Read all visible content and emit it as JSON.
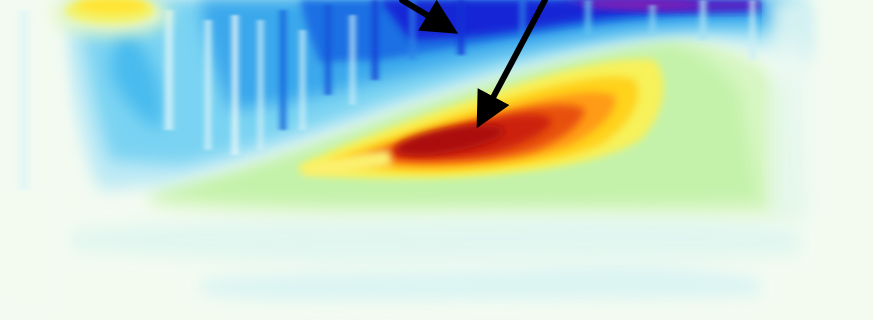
{
  "figure": {
    "kind": "heatmap",
    "annotations": [
      {
        "name": "arrow-to-blue-region",
        "points_to": "blue-cold-region"
      },
      {
        "name": "arrow-to-red-peak",
        "points_to": "red-hot-core"
      }
    ],
    "palette": {
      "background": "#f3fbf1",
      "deep_blue": "#1416d9",
      "blue": "#1a7ae8",
      "cyan": "#59cbf0",
      "light_cyan": "#b9ecf4",
      "pale_green": "#c9f3b6",
      "green": "#b6ee8f",
      "yellow": "#ffee36",
      "orange": "#ff8c14",
      "red": "#d62b0e",
      "dark_red": "#a80d0d",
      "purple": "#6c18b8",
      "arrow": "#000000"
    }
  }
}
